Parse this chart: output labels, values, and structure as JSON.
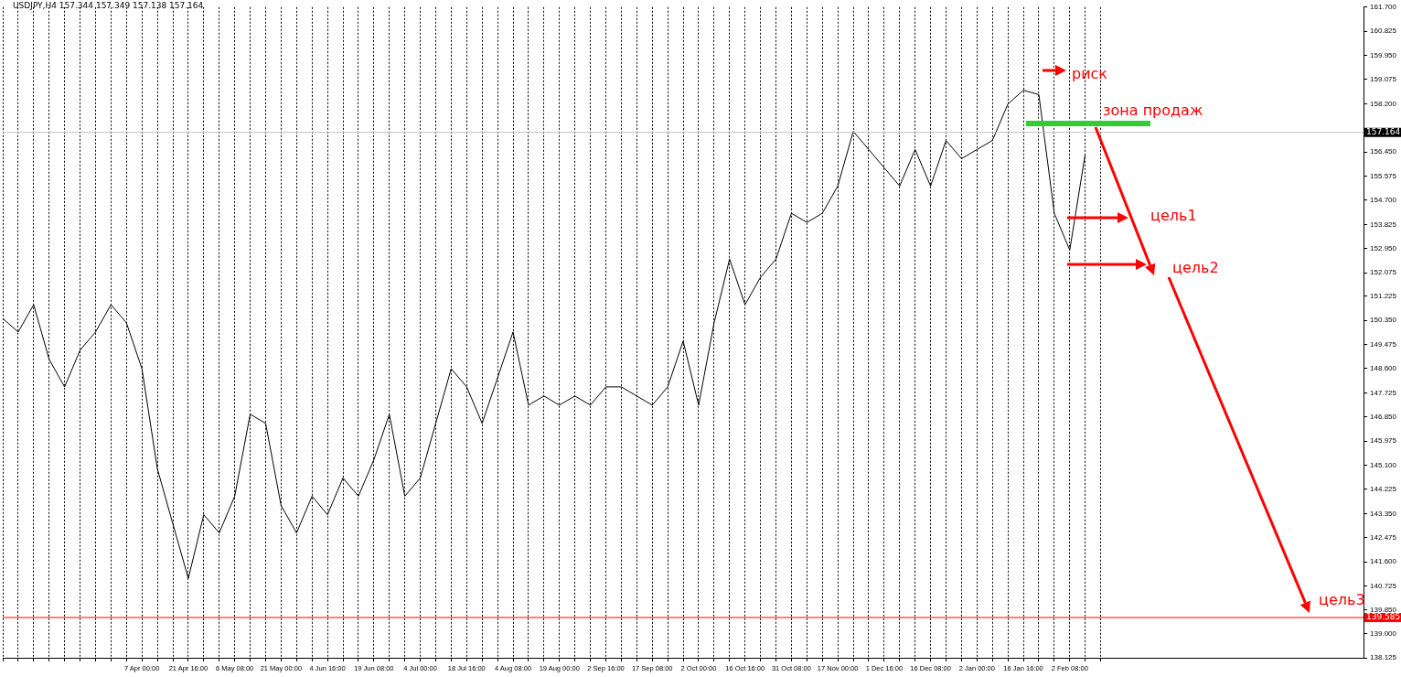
{
  "chart_data": {
    "type": "line",
    "title": "USDJPY,H4  157.344 157.349 157.138 157.164",
    "categories": [
      null,
      null,
      null,
      null,
      null,
      null,
      null,
      null,
      null,
      "7 Apr 00:00",
      null,
      null,
      "21 Apr 16:00",
      null,
      null,
      "6 May 08:00",
      null,
      null,
      "21 May 00:00",
      null,
      null,
      "4 Jun 16:00",
      null,
      null,
      "19 Jun 08:00",
      null,
      null,
      "4 Jul 00:00",
      null,
      null,
      "18 Jul 16:00",
      null,
      null,
      "4 Aug 08:00",
      null,
      null,
      "19 Aug 00:00",
      null,
      null,
      "2 Sep 16:00",
      null,
      null,
      "17 Sep 08:00",
      null,
      null,
      "2 Oct 00:00",
      null,
      null,
      "16 Oct 16:00",
      null,
      null,
      "31 Oct 08:00",
      null,
      null,
      "17 Nov 00:00",
      null,
      null,
      "1 Dec 16:00",
      null,
      null,
      "16 Dec 08:00",
      null,
      null,
      "2 Jan 00:00",
      null,
      null,
      "16 Jan 16:00",
      null,
      null,
      "2 Feb 08:00",
      null,
      null,
      null,
      null,
      null,
      null,
      null,
      null,
      null,
      null,
      null,
      null,
      null,
      null,
      null,
      null,
      null,
      null,
      null
    ],
    "series": [
      {
        "color": "#000000",
        "values": [
          150.42,
          149.93,
          150.92,
          148.94,
          147.94,
          149.27,
          149.93,
          150.92,
          150.26,
          148.6,
          144.97,
          142.98,
          141.0,
          143.31,
          142.65,
          143.98,
          146.95,
          146.62,
          143.64,
          142.65,
          143.98,
          143.31,
          144.64,
          143.98,
          145.3,
          146.95,
          143.98,
          144.64,
          146.62,
          148.6,
          147.94,
          146.62,
          148.27,
          149.93,
          147.28,
          147.61,
          147.28,
          147.61,
          147.28,
          147.94,
          147.94,
          147.61,
          147.28,
          147.94,
          149.6,
          147.28,
          150.26,
          152.57,
          150.92,
          151.91,
          152.57,
          154.23,
          153.9,
          154.23,
          155.22,
          157.2,
          156.54,
          155.88,
          155.22,
          156.54,
          155.22,
          156.87,
          156.21,
          156.54,
          156.87,
          158.19,
          158.69,
          158.53,
          154.23,
          152.9,
          156.38,
          null,
          null,
          null,
          null,
          null,
          null,
          null,
          null,
          null,
          null,
          null,
          null,
          null,
          null,
          null,
          null,
          null,
          null
        ]
      }
    ],
    "ylim": [
      138.125,
      161.7
    ],
    "yticks": [
      {
        "value": 161.7,
        "label": "161.700"
      },
      {
        "value": 160.825,
        "label": "160.825"
      },
      {
        "value": 159.95,
        "label": "159.950"
      },
      {
        "value": 159.075,
        "label": "159.075"
      },
      {
        "value": 158.2,
        "label": "158.200"
      },
      {
        "value": 156.45,
        "label": "156.450"
      },
      {
        "value": 155.575,
        "label": "155.575"
      },
      {
        "value": 154.7,
        "label": "154.700"
      },
      {
        "value": 153.825,
        "label": "153.825"
      },
      {
        "value": 152.95,
        "label": "152.950"
      },
      {
        "value": 152.075,
        "label": "152.075"
      },
      {
        "value": 151.225,
        "label": "151.225"
      },
      {
        "value": 150.35,
        "label": "150.350"
      },
      {
        "value": 149.475,
        "label": "149.475"
      },
      {
        "value": 148.6,
        "label": "148.600"
      },
      {
        "value": 147.725,
        "label": "147.725"
      },
      {
        "value": 146.85,
        "label": "146.850"
      },
      {
        "value": 145.975,
        "label": "145.975"
      },
      {
        "value": 145.1,
        "label": "145.100"
      },
      {
        "value": 144.225,
        "label": "144.225"
      },
      {
        "value": 143.35,
        "label": "143.350"
      },
      {
        "value": 142.475,
        "label": "142.475"
      },
      {
        "value": 141.6,
        "label": "141.600"
      },
      {
        "value": 140.725,
        "label": "140.725"
      },
      {
        "value": 139.85,
        "label": "139.850"
      },
      {
        "value": 139.0,
        "label": "139.000"
      },
      {
        "value": 138.125,
        "label": "138.125"
      }
    ],
    "ref_lines": [
      {
        "axis": "y",
        "value": 157.164,
        "label": "157.164",
        "color": "#c0c0c0"
      },
      {
        "axis": "y",
        "value": 139.585,
        "label": "139.585",
        "color": "#ff0000"
      }
    ],
    "annotations": [
      "риск",
      "зона продаж",
      "цель1",
      "цель2",
      "цель3"
    ],
    "grid": "x",
    "legend": false,
    "marker": "none",
    "line_style": "solid"
  }
}
